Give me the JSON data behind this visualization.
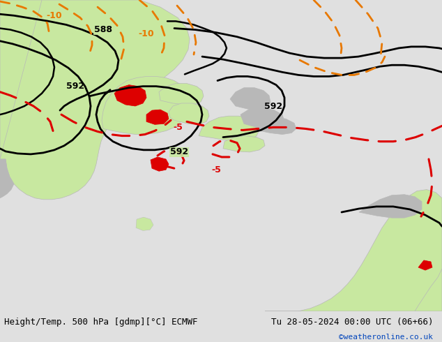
{
  "title_left": "Height/Temp. 500 hPa [gdmp][°C] ECMWF",
  "title_right": "Tu 28-05-2024 00:00 UTC (06+66)",
  "credit": "©weatheronline.co.uk",
  "bg_color": "#e0e0e0",
  "land_green_color": "#c8e8a0",
  "land_gray_color": "#b8b8b8",
  "contour_black_color": "#000000",
  "contour_orange_color": "#e87800",
  "contour_red_color": "#dd0000",
  "label_color_black": "#000000",
  "label_color_orange": "#e87800",
  "label_color_red": "#dd0000",
  "fig_width": 6.34,
  "fig_height": 4.9,
  "dpi": 100,
  "bottom_bar_color": "#e8e8e8",
  "title_fontsize": 9,
  "credit_fontsize": 8,
  "credit_color": "#0044bb"
}
